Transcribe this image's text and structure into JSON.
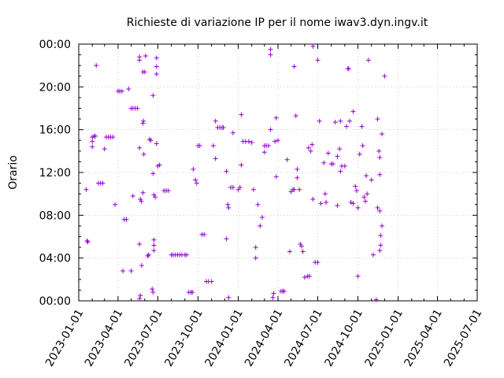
{
  "chart_data": {
    "type": "scatter",
    "title": "Richieste di variazione IP per il nome iwav3.dyn.ingv.it",
    "xlabel": "",
    "ylabel": "Orario",
    "x_scale": "date",
    "xlim": [
      "2023-01-01",
      "2025-07-01"
    ],
    "ylim": [
      0,
      24
    ],
    "x_tick_labels": [
      "2023-01-01",
      "2023-04-01",
      "2023-07-01",
      "2023-10-01",
      "2024-01-01",
      "2024-04-01",
      "2024-07-01",
      "2024-10-01",
      "2025-01-01",
      "2025-04-01",
      "2025-07-01"
    ],
    "y_tick_labels": [
      "00:00",
      "04:00",
      "08:00",
      "12:00",
      "16:00",
      "20:00",
      "00:00"
    ],
    "y_tick_values": [
      0,
      4,
      8,
      12,
      16,
      20,
      24
    ],
    "grid": true,
    "marker": "plus",
    "color": "#9400d3",
    "series": [
      {
        "points": [
          [
            "2023-01-20",
            5.6
          ],
          [
            "2023-01-22",
            5.5
          ],
          [
            "2023-01-18",
            10.4
          ],
          [
            "2023-02-01",
            15.3
          ],
          [
            "2023-02-05",
            15.4
          ],
          [
            "2023-02-08",
            15.4
          ],
          [
            "2023-02-01",
            14.9
          ],
          [
            "2023-02-01",
            14.4
          ],
          [
            "2023-02-10",
            22.0
          ],
          [
            "2023-02-15",
            11.0
          ],
          [
            "2023-02-20",
            11.0
          ],
          [
            "2023-02-25",
            11.0
          ],
          [
            "2023-03-01",
            14.2
          ],
          [
            "2023-03-05",
            15.3
          ],
          [
            "2023-03-10",
            15.3
          ],
          [
            "2023-03-15",
            15.3
          ],
          [
            "2023-03-20",
            15.3
          ],
          [
            "2023-03-25",
            9.0
          ],
          [
            "2023-04-01",
            19.6
          ],
          [
            "2023-04-05",
            19.6
          ],
          [
            "2023-04-10",
            19.6
          ],
          [
            "2023-04-15",
            7.6
          ],
          [
            "2023-04-20",
            7.6
          ],
          [
            "2023-04-12",
            2.8
          ],
          [
            "2023-05-01",
            18.0
          ],
          [
            "2023-05-05",
            18.0
          ],
          [
            "2023-05-10",
            18.0
          ],
          [
            "2023-05-15",
            18.0
          ],
          [
            "2023-04-25",
            19.8
          ],
          [
            "2023-05-01",
            2.8
          ],
          [
            "2023-05-05",
            9.8
          ],
          [
            "2023-05-20",
            22.5
          ],
          [
            "2023-05-20",
            22.8
          ],
          [
            "2023-05-20",
            14.3
          ],
          [
            "2023-05-22",
            9.5
          ],
          [
            "2023-05-24",
            9.3
          ],
          [
            "2023-05-20",
            5.3
          ],
          [
            "2023-05-22",
            0.5
          ],
          [
            "2023-05-20",
            0.2
          ],
          [
            "2023-05-28",
            21.4
          ],
          [
            "2023-06-01",
            21.4
          ],
          [
            "2023-06-03",
            22.9
          ],
          [
            "2023-05-28",
            16.6
          ],
          [
            "2023-05-29",
            16.8
          ],
          [
            "2023-05-30",
            13.7
          ],
          [
            "2023-05-28",
            10.1
          ],
          [
            "2023-05-25",
            3.3
          ],
          [
            "2023-06-08",
            4.2
          ],
          [
            "2023-06-10",
            4.3
          ],
          [
            "2023-06-12",
            15.1
          ],
          [
            "2023-06-15",
            15.0
          ],
          [
            "2023-06-18",
            1.1
          ],
          [
            "2023-06-20",
            0.8
          ],
          [
            "2023-06-20",
            19.2
          ],
          [
            "2023-06-22",
            5.7
          ],
          [
            "2023-06-22",
            5.2
          ],
          [
            "2023-06-22",
            4.7
          ],
          [
            "2023-06-20",
            11.9
          ],
          [
            "2023-06-25",
            9.7
          ],
          [
            "2023-06-22",
            9.9
          ],
          [
            "2023-06-28",
            22.7
          ],
          [
            "2023-06-28",
            21.9
          ],
          [
            "2023-06-28",
            21.2
          ],
          [
            "2023-06-28",
            14.7
          ],
          [
            "2023-07-01",
            12.6
          ],
          [
            "2023-07-05",
            12.7
          ],
          [
            "2023-07-15",
            10.3
          ],
          [
            "2023-07-20",
            10.3
          ],
          [
            "2023-07-25",
            10.3
          ],
          [
            "2023-08-01",
            4.3
          ],
          [
            "2023-08-05",
            4.3
          ],
          [
            "2023-08-10",
            4.3
          ],
          [
            "2023-08-15",
            4.3
          ],
          [
            "2023-08-20",
            4.3
          ],
          [
            "2023-08-25",
            4.3
          ],
          [
            "2023-09-01",
            4.3
          ],
          [
            "2023-09-05",
            4.3
          ],
          [
            "2023-09-10",
            0.8
          ],
          [
            "2023-09-15",
            0.8
          ],
          [
            "2023-09-18",
            0.8
          ],
          [
            "2023-09-20",
            12.3
          ],
          [
            "2023-09-25",
            11.3
          ],
          [
            "2023-09-28",
            11.0
          ],
          [
            "2023-10-01",
            14.5
          ],
          [
            "2023-10-05",
            14.5
          ],
          [
            "2023-10-10",
            6.2
          ],
          [
            "2023-10-15",
            6.2
          ],
          [
            "2023-10-20",
            1.8
          ],
          [
            "2023-10-25",
            1.8
          ],
          [
            "2023-11-01",
            1.8
          ],
          [
            "2023-11-05",
            14.5
          ],
          [
            "2023-11-10",
            13.3
          ],
          [
            "2023-11-10",
            16.8
          ],
          [
            "2023-11-15",
            16.2
          ],
          [
            "2023-11-20",
            16.2
          ],
          [
            "2023-11-25",
            16.2
          ],
          [
            "2023-11-28",
            16.2
          ],
          [
            "2023-12-05",
            12.1
          ],
          [
            "2023-12-05",
            5.8
          ],
          [
            "2023-12-08",
            9.0
          ],
          [
            "2023-12-10",
            8.7
          ],
          [
            "2023-12-10",
            0.3
          ],
          [
            "2023-12-15",
            10.6
          ],
          [
            "2023-12-20",
            10.6
          ],
          [
            "2023-12-20",
            15.7
          ],
          [
            "2024-01-01",
            10.4
          ],
          [
            "2024-01-05",
            10.6
          ],
          [
            "2024-01-08",
            12.7
          ],
          [
            "2024-01-08",
            17.4
          ],
          [
            "2024-01-12",
            14.9
          ],
          [
            "2024-01-18",
            14.9
          ],
          [
            "2024-01-25",
            14.9
          ],
          [
            "2024-02-01",
            14.8
          ],
          [
            "2024-02-05",
            10.4
          ],
          [
            "2024-02-10",
            5.0
          ],
          [
            "2024-02-10",
            4.0
          ],
          [
            "2024-02-15",
            9.0
          ],
          [
            "2024-02-20",
            7.0
          ],
          [
            "2024-02-25",
            7.8
          ],
          [
            "2024-03-01",
            14.5
          ],
          [
            "2024-03-05",
            14.5
          ],
          [
            "2024-03-10",
            14.5
          ],
          [
            "2024-03-01",
            13.9
          ],
          [
            "2024-03-15",
            16.0
          ],
          [
            "2024-03-15",
            23.5
          ],
          [
            "2024-03-15",
            23.0
          ],
          [
            "2024-03-20",
            0.3
          ],
          [
            "2024-03-22",
            0.7
          ],
          [
            "2024-03-25",
            14.9
          ],
          [
            "2024-03-28",
            17.1
          ],
          [
            "2024-03-28",
            11.6
          ],
          [
            "2024-04-01",
            15.0
          ],
          [
            "2024-04-08",
            0.9
          ],
          [
            "2024-04-12",
            0.9
          ],
          [
            "2024-04-15",
            0.9
          ],
          [
            "2024-04-22",
            13.2
          ],
          [
            "2024-04-28",
            4.6
          ],
          [
            "2024-05-01",
            10.2
          ],
          [
            "2024-05-05",
            10.4
          ],
          [
            "2024-05-08",
            21.9
          ],
          [
            "2024-05-08",
            10.4
          ],
          [
            "2024-05-12",
            17.3
          ],
          [
            "2024-05-15",
            12.3
          ],
          [
            "2024-05-15",
            11.5
          ],
          [
            "2024-05-20",
            10.4
          ],
          [
            "2024-05-22",
            5.3
          ],
          [
            "2024-05-25",
            5.1
          ],
          [
            "2024-05-28",
            4.6
          ],
          [
            "2024-06-01",
            2.2
          ],
          [
            "2024-06-08",
            2.3
          ],
          [
            "2024-06-12",
            2.3
          ],
          [
            "2024-06-10",
            14.3
          ],
          [
            "2024-06-15",
            14.0
          ],
          [
            "2024-06-20",
            9.5
          ],
          [
            "2024-06-25",
            3.6
          ],
          [
            "2024-07-01",
            3.6
          ],
          [
            "2024-07-05",
            16.8
          ],
          [
            "2024-07-08",
            9.1
          ],
          [
            "2024-07-15",
            12.9
          ],
          [
            "2024-07-18",
            10.0
          ],
          [
            "2024-07-20",
            9.2
          ],
          [
            "2024-07-25",
            13.8
          ],
          [
            "2024-08-01",
            12.8
          ],
          [
            "2024-08-05",
            12.8
          ],
          [
            "2024-08-10",
            16.7
          ],
          [
            "2024-08-15",
            13.5
          ],
          [
            "2024-08-15",
            8.9
          ],
          [
            "2024-08-20",
            14.2
          ],
          [
            "2024-08-22",
            16.8
          ],
          [
            "2024-08-22",
            12.1
          ],
          [
            "2024-08-25",
            12.6
          ],
          [
            "2024-09-01",
            12.6
          ],
          [
            "2024-09-05",
            16.3
          ],
          [
            "2024-09-08",
            21.7
          ],
          [
            "2024-09-10",
            21.7
          ],
          [
            "2024-09-12",
            16.8
          ],
          [
            "2024-09-15",
            9.2
          ],
          [
            "2024-09-20",
            17.7
          ],
          [
            "2024-09-20",
            9.1
          ],
          [
            "2024-09-25",
            10.7
          ],
          [
            "2024-09-28",
            10.3
          ],
          [
            "2024-10-01",
            8.7
          ],
          [
            "2024-10-01",
            2.3
          ],
          [
            "2024-10-05",
            13.7
          ],
          [
            "2024-10-10",
            16.3
          ],
          [
            "2024-10-12",
            14.5
          ],
          [
            "2024-10-15",
            9.7
          ],
          [
            "2024-10-18",
            9.3
          ],
          [
            "2024-10-20",
            11.7
          ],
          [
            "2024-10-22",
            10.0
          ],
          [
            "2024-10-25",
            22.5
          ],
          [
            "2024-11-01",
            11.3
          ],
          [
            "2024-11-05",
            4.3
          ],
          [
            "2024-11-12",
            0.1
          ],
          [
            "2024-11-15",
            8.7
          ],
          [
            "2024-11-15",
            17.0
          ],
          [
            "2024-11-20",
            8.4
          ],
          [
            "2024-11-25",
            7.0
          ],
          [
            "2024-12-01",
            21.0
          ],
          [
            "2024-11-25",
            15.6
          ],
          [
            "2024-11-20",
            13.4
          ],
          [
            "2024-11-20",
            11.8
          ],
          [
            "2024-11-18",
            14.0
          ],
          [
            "2024-11-22",
            6.1
          ],
          [
            "2024-11-22",
            5.2
          ],
          [
            "2024-11-20",
            4.7
          ],
          [
            "2024-07-01",
            22.5
          ],
          [
            "2024-06-20",
            23.8
          ],
          [
            "2024-06-18",
            14.6
          ]
        ]
      }
    ]
  }
}
